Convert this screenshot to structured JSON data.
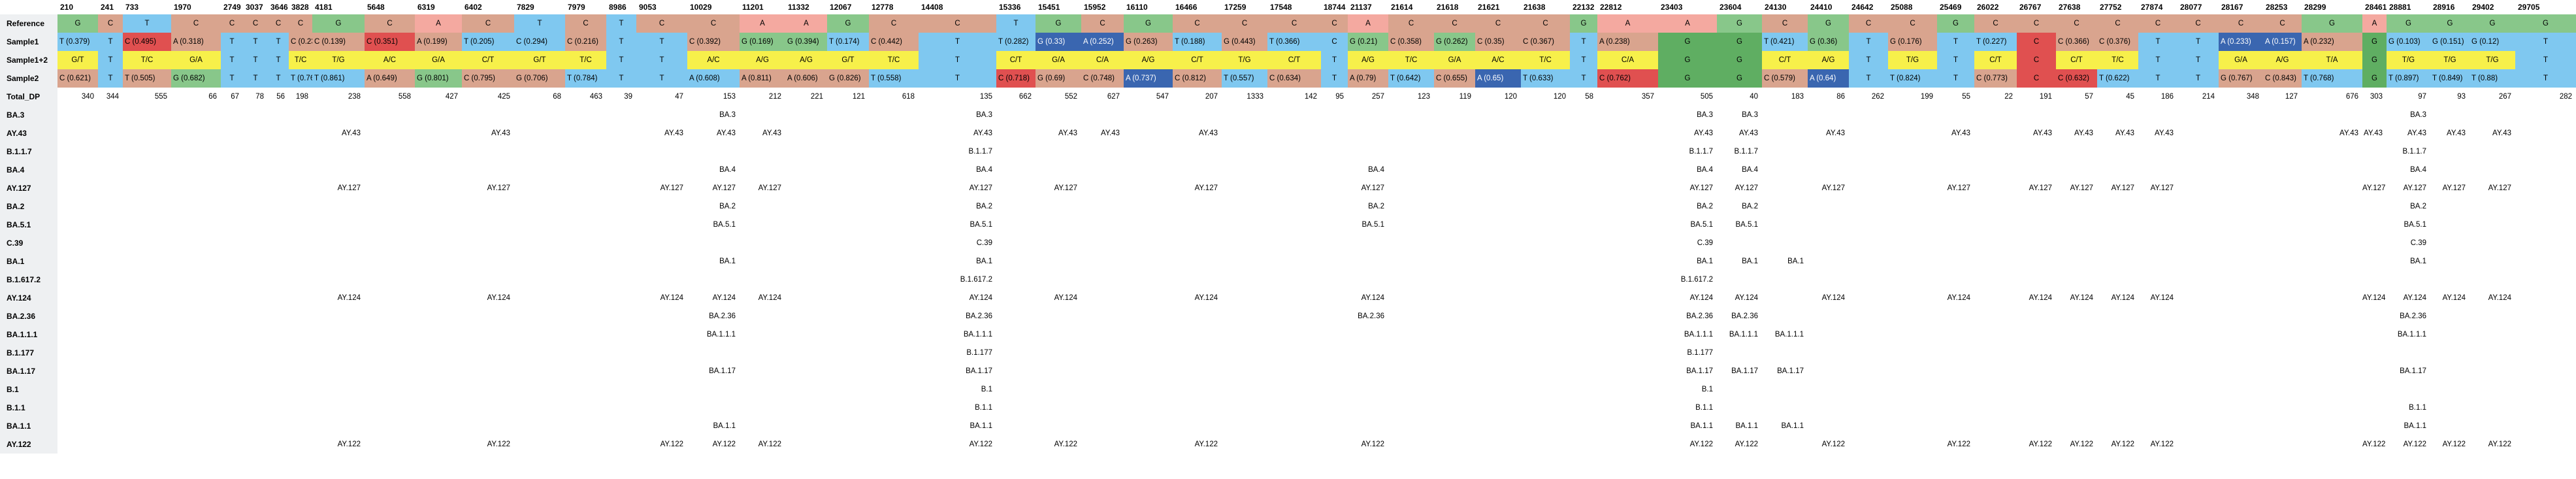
{
  "colors": {
    "A": "#f4a9a0",
    "C": "#d9a48e",
    "T": "#7fc8f0",
    "G": "#88c78a",
    "TC": "#f7f04a",
    "red": "#e05050",
    "blue": "#3a66b0",
    "darkgreen": "#5fae62"
  },
  "row_labels": [
    "Reference",
    "Sample1",
    "Sample1+2",
    "Sample2",
    "Total_DP",
    "BA.3",
    "AY.43",
    "B.1.1.7",
    "BA.4",
    "AY.127",
    "BA.2",
    "BA.5.1",
    "C.39",
    "BA.1",
    "B.1.617.2",
    "AY.124",
    "BA.2.36",
    "BA.1.1.1",
    "B.1.177",
    "BA.1.17",
    "B.1",
    "B.1.1",
    "BA.1.1",
    "AY.122"
  ],
  "positions": [
    "210",
    "241",
    "733",
    "1970",
    "2749",
    "3037",
    "3646",
    "3828",
    "4181",
    "5648",
    "6319",
    "6402",
    "7829",
    "7979",
    "8986",
    "9053",
    "10029",
    "11201",
    "11332",
    "12067",
    "12778",
    "14408",
    "15336",
    "15451",
    "15952",
    "16110",
    "16466",
    "17259",
    "17548",
    "18744",
    "21137",
    "21614",
    "21618",
    "21621",
    "21638",
    "22132",
    "22812",
    "23403",
    "23604",
    "24130",
    "24410",
    "24642",
    "25088",
    "25469",
    "26022",
    "26767",
    "27638",
    "27752",
    "27874",
    "28077",
    "28167",
    "28253",
    "28299",
    "28461",
    "28881",
    "28916",
    "29402",
    "29705"
  ],
  "reference": [
    "G",
    "C",
    "T",
    "C",
    "C",
    "C",
    "C",
    "C",
    "G",
    "C",
    "A",
    "C",
    "T",
    "C",
    "T",
    "C",
    "C",
    "A",
    "A",
    "G",
    "C",
    "C",
    "T",
    "G",
    "C",
    "G",
    "C",
    "C",
    "C",
    "C",
    "A",
    "C",
    "C",
    "C",
    "C",
    "G",
    "A",
    "A",
    "G",
    "C",
    "G",
    "C",
    "C",
    "G",
    "C",
    "C",
    "C",
    "C",
    "C",
    "C",
    "C",
    "C",
    "G",
    "A",
    "G",
    "G",
    "G",
    "G"
  ],
  "sample1": [
    "T (0.379)",
    "T",
    "C (0.495)",
    "A (0.318)",
    "T",
    "T",
    "T",
    "C (0.237)",
    "C (0.139)",
    "C (0.351)",
    "A (0.199)",
    "T (0.205)",
    "C (0.294)",
    "C (0.216)",
    "T",
    "T",
    "C (0.392)",
    "G (0.169)",
    "G (0.394)",
    "T (0.174)",
    "C (0.442)",
    "T",
    "T (0.282)",
    "G (0.33)",
    "A (0.252)",
    "G (0.263)",
    "T (0.188)",
    "G (0.443)",
    "T (0.366)",
    "C",
    "G (0.21)",
    "C (0.358)",
    "G (0.262)",
    "C (0.35)",
    "C (0.367)",
    "T",
    "A (0.238)",
    "G",
    "G",
    "T (0.421)",
    "G (0.36)",
    "T",
    "G (0.176)",
    "T",
    "T (0.227)",
    "C",
    "C (0.366)",
    "C (0.376)",
    "T",
    "T",
    "A (0.233)",
    "A (0.157)",
    "A (0.232)",
    "G",
    "G (0.103)",
    "G (0.151)",
    "G (0.12)",
    "T"
  ],
  "sample12": [
    "G/T",
    "T",
    "T/C",
    "G/A",
    "T",
    "T",
    "T",
    "T/C",
    "T/G",
    "A/C",
    "G/A",
    "C/T",
    "G/T",
    "T/C",
    "T",
    "T",
    "A/C",
    "A/G",
    "A/G",
    "G/T",
    "T/C",
    "T",
    "C/T",
    "G/A",
    "C/A",
    "A/G",
    "C/T",
    "T/G",
    "C/T",
    "T",
    "A/G",
    "T/C",
    "G/A",
    "A/C",
    "T/C",
    "T",
    "C/A",
    "G",
    "G",
    "C/T",
    "A/G",
    "T",
    "T/G",
    "T",
    "C/T",
    "C",
    "C/T",
    "T/C",
    "T",
    "T",
    "G/A",
    "A/G",
    "T/A",
    "G",
    "T/G",
    "T/G",
    "T/G",
    "T"
  ],
  "sample2": [
    "C (0.621)",
    "T",
    "T (0.505)",
    "G (0.682)",
    "T",
    "T",
    "T",
    "T (0.763)",
    "T (0.861)",
    "A (0.649)",
    "G (0.801)",
    "C (0.795)",
    "G (0.706)",
    "T (0.784)",
    "T",
    "T",
    "A (0.608)",
    "A (0.811)",
    "A (0.606)",
    "G (0.826)",
    "T (0.558)",
    "T",
    "C (0.718)",
    "G (0.69)",
    "C (0.748)",
    "A (0.737)",
    "C (0.812)",
    "T (0.557)",
    "C (0.634)",
    "T",
    "A (0.79)",
    "T (0.642)",
    "C (0.655)",
    "A (0.65)",
    "T (0.633)",
    "T",
    "C (0.762)",
    "G",
    "G",
    "C (0.579)",
    "A (0.64)",
    "T",
    "T (0.824)",
    "T",
    "C (0.773)",
    "C",
    "C (0.632)",
    "T (0.622)",
    "T",
    "T",
    "G (0.767)",
    "C (0.843)",
    "T (0.768)",
    "G",
    "T (0.897)",
    "T (0.849)",
    "T (0.88)",
    "T"
  ],
  "sample1_style": [
    "T",
    "T",
    "red",
    "C",
    "T",
    "T",
    "T",
    "C",
    "C",
    "red",
    "C",
    "T",
    "T",
    "C",
    "T",
    "T",
    "C",
    "G",
    "G",
    "T",
    "C",
    "T",
    "T",
    "blue",
    "blue",
    "C",
    "T",
    "C",
    "T",
    "T",
    "G",
    "C",
    "G",
    "C",
    "C",
    "T",
    "C",
    "darkgreen",
    "darkgreen",
    "T",
    "G",
    "T",
    "C",
    "T",
    "T",
    "red",
    "C",
    "C",
    "T",
    "T",
    "blue",
    "blue",
    "C",
    "darkgreen",
    "T",
    "T",
    "T",
    "T"
  ],
  "sample12_style": [
    "TC",
    "T",
    "TC",
    "TC",
    "T",
    "T",
    "T",
    "TC",
    "TC",
    "TC",
    "TC",
    "TC",
    "TC",
    "TC",
    "T",
    "T",
    "TC",
    "TC",
    "TC",
    "TC",
    "TC",
    "T",
    "TC",
    "TC",
    "TC",
    "TC",
    "TC",
    "TC",
    "TC",
    "T",
    "TC",
    "TC",
    "TC",
    "TC",
    "TC",
    "T",
    "TC",
    "darkgreen",
    "darkgreen",
    "TC",
    "TC",
    "T",
    "TC",
    "T",
    "TC",
    "red",
    "TC",
    "TC",
    "T",
    "T",
    "TC",
    "TC",
    "TC",
    "darkgreen",
    "TC",
    "TC",
    "TC",
    "T"
  ],
  "sample2_style": [
    "C",
    "T",
    "C",
    "G",
    "T",
    "T",
    "T",
    "T",
    "T",
    "C",
    "G",
    "C",
    "C",
    "T",
    "T",
    "T",
    "T",
    "C",
    "C",
    "C",
    "T",
    "T",
    "red",
    "C",
    "C",
    "blue",
    "C",
    "T",
    "C",
    "T",
    "C",
    "T",
    "C",
    "blue",
    "T",
    "T",
    "red",
    "darkgreen",
    "darkgreen",
    "C",
    "blue",
    "T",
    "T",
    "T",
    "C",
    "red",
    "red",
    "T",
    "T",
    "T",
    "C",
    "C",
    "T",
    "darkgreen",
    "T",
    "T",
    "T",
    "T"
  ],
  "total_dp": [
    "340",
    "344",
    "555",
    "66",
    "67",
    "78",
    "56",
    "198",
    "238",
    "558",
    "427",
    "425",
    "68",
    "463",
    "39",
    "47",
    "153",
    "212",
    "221",
    "121",
    "618",
    "135",
    "662",
    "552",
    "627",
    "547",
    "207",
    "1333",
    "142",
    "95",
    "257",
    "123",
    "119",
    "120",
    "120",
    "58",
    "357",
    "505",
    "40",
    "183",
    "86",
    "262",
    "199",
    "55",
    "22",
    "191",
    "57",
    "45",
    "186",
    "214",
    "348",
    "127",
    "676",
    "303",
    "97",
    "93",
    "267",
    "282"
  ],
  "lineages": [
    {
      "label": "BA.3",
      "cols": [
        16,
        21,
        37,
        38,
        54
      ]
    },
    {
      "label": "AY.43",
      "cols": [
        8,
        11,
        15,
        16,
        17,
        21,
        23,
        24,
        26,
        37,
        38,
        40,
        43,
        45,
        46,
        47,
        48,
        52,
        53,
        54,
        55,
        56
      ]
    },
    {
      "label": "B.1.1.7",
      "cols": [
        21,
        37,
        38,
        54
      ]
    },
    {
      "label": "BA.4",
      "cols": [
        16,
        21,
        30,
        37,
        38,
        54
      ]
    },
    {
      "label": "AY.127",
      "cols": [
        8,
        11,
        15,
        16,
        17,
        21,
        23,
        26,
        30,
        37,
        38,
        40,
        43,
        45,
        46,
        47,
        48,
        53,
        54,
        55,
        56
      ]
    },
    {
      "label": "BA.2",
      "cols": [
        16,
        21,
        30,
        37,
        38,
        54
      ]
    },
    {
      "label": "BA.5.1",
      "cols": [
        16,
        21,
        30,
        37,
        38,
        54
      ]
    },
    {
      "label": "C.39",
      "cols": [
        21,
        37,
        54
      ]
    },
    {
      "label": "BA.1",
      "cols": [
        16,
        21,
        37,
        38,
        39,
        54
      ]
    },
    {
      "label": "B.1.617.2",
      "cols": [
        21,
        37
      ]
    },
    {
      "label": "AY.124",
      "cols": [
        8,
        11,
        15,
        16,
        17,
        21,
        23,
        26,
        30,
        37,
        38,
        40,
        43,
        45,
        46,
        47,
        48,
        53,
        54,
        55,
        56
      ]
    },
    {
      "label": "BA.2.36",
      "cols": [
        16,
        21,
        30,
        37,
        38,
        54
      ]
    },
    {
      "label": "BA.1.1.1",
      "cols": [
        16,
        21,
        37,
        38,
        39,
        54
      ]
    },
    {
      "label": "B.1.177",
      "cols": [
        21,
        37
      ]
    },
    {
      "label": "BA.1.17",
      "cols": [
        16,
        21,
        37,
        38,
        39,
        54
      ]
    },
    {
      "label": "B.1",
      "cols": [
        21,
        37
      ]
    },
    {
      "label": "B.1.1",
      "cols": [
        21,
        37,
        54
      ]
    },
    {
      "label": "BA.1.1",
      "cols": [
        16,
        21,
        37,
        38,
        39,
        54
      ]
    },
    {
      "label": "AY.122",
      "cols": [
        8,
        11,
        15,
        16,
        17,
        21,
        23,
        26,
        30,
        37,
        38,
        40,
        43,
        45,
        46,
        47,
        48,
        53,
        54,
        55,
        56
      ]
    }
  ]
}
